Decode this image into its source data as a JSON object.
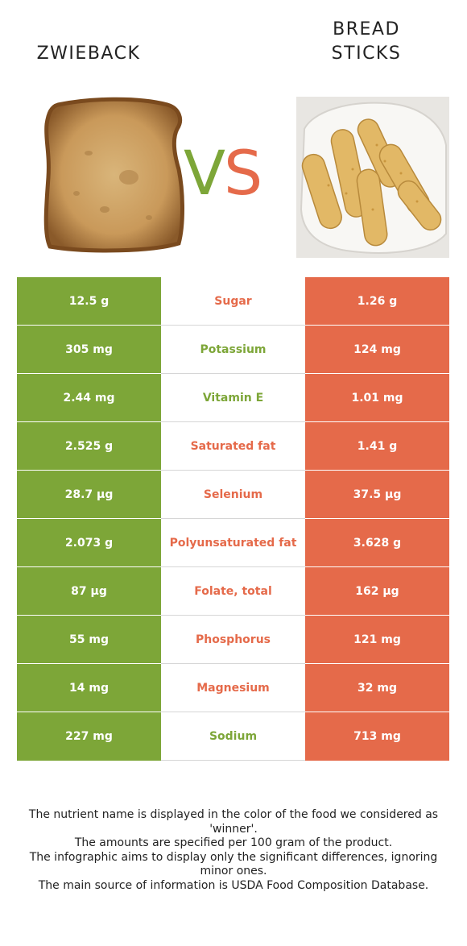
{
  "header": {
    "left_food": "ZWIEBACK",
    "right_food_line1": "BREAD",
    "right_food_line2": "STICKS",
    "vs_v": "V",
    "vs_s": "S"
  },
  "colors": {
    "left_winner": "#7da638",
    "right_winner": "#e56a4a"
  },
  "rows": [
    {
      "left": "12.5 g",
      "nutrient": "Sugar",
      "right": "1.26 g",
      "winner": "right"
    },
    {
      "left": "305 mg",
      "nutrient": "Potassium",
      "right": "124 mg",
      "winner": "left"
    },
    {
      "left": "2.44 mg",
      "nutrient": "Vitamin E",
      "right": "1.01 mg",
      "winner": "left"
    },
    {
      "left": "2.525 g",
      "nutrient": "Saturated fat",
      "right": "1.41 g",
      "winner": "right"
    },
    {
      "left": "28.7 µg",
      "nutrient": "Selenium",
      "right": "37.5 µg",
      "winner": "right"
    },
    {
      "left": "2.073 g",
      "nutrient": "Polyunsaturated fat",
      "right": "3.628 g",
      "winner": "right"
    },
    {
      "left": "87 µg",
      "nutrient": "Folate, total",
      "right": "162 µg",
      "winner": "right"
    },
    {
      "left": "55 mg",
      "nutrient": "Phosphorus",
      "right": "121 mg",
      "winner": "right"
    },
    {
      "left": "14 mg",
      "nutrient": "Magnesium",
      "right": "32 mg",
      "winner": "right"
    },
    {
      "left": "227 mg",
      "nutrient": "Sodium",
      "right": "713 mg",
      "winner": "left"
    }
  ],
  "footer": {
    "line1": "The nutrient name is displayed in the color of the food we considered as 'winner'.",
    "line2": "The amounts are specified per 100 gram of the product.",
    "line3": "The infographic aims to display only the significant differences, ignoring minor ones.",
    "line4": "The main source of information is USDA Food Composition Database."
  }
}
